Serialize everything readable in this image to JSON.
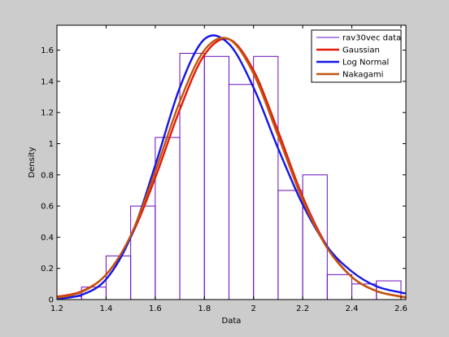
{
  "chart_data": {
    "type": "bar",
    "title": "",
    "xlabel": "Data",
    "ylabel": "Density",
    "xlim": [
      1.2,
      2.62
    ],
    "ylim": [
      0,
      1.76
    ],
    "xticks": [
      "1.2",
      "1.4",
      "1.6",
      "1.8",
      "2",
      "2.2",
      "2.4",
      "2.6"
    ],
    "yticks": [
      "0",
      "0.2",
      "0.4",
      "0.6",
      "0.8",
      "1",
      "1.2",
      "1.4",
      "1.6"
    ],
    "grid": false,
    "legend_position": "top-right",
    "histogram": {
      "name": "rav30vec data",
      "color": "#6a0dbf",
      "bin_edges": [
        1.2,
        1.3,
        1.4,
        1.5,
        1.6,
        1.7,
        1.8,
        1.9,
        2.0,
        2.1,
        2.2,
        2.3,
        2.4,
        2.5,
        2.6
      ],
      "values": [
        0.02,
        0.08,
        0.28,
        0.6,
        1.04,
        1.58,
        1.56,
        1.38,
        1.56,
        0.7,
        0.8,
        0.16,
        0.1,
        0.12
      ]
    },
    "series": [
      {
        "name": "Gaussian",
        "color": "#e41a0a",
        "x": [
          1.2,
          1.3,
          1.4,
          1.5,
          1.6,
          1.7,
          1.8,
          1.9,
          2.0,
          2.1,
          2.2,
          2.3,
          2.4,
          2.5,
          2.6,
          2.62
        ],
        "y": [
          0.018,
          0.052,
          0.16,
          0.4,
          0.78,
          1.22,
          1.57,
          1.67,
          1.47,
          1.08,
          0.66,
          0.34,
          0.145,
          0.055,
          0.02,
          0.015
        ]
      },
      {
        "name": "Log Normal",
        "color": "#1515e6",
        "x": [
          1.2,
          1.3,
          1.4,
          1.5,
          1.6,
          1.7,
          1.8,
          1.9,
          2.0,
          2.1,
          2.2,
          2.3,
          2.4,
          2.5,
          2.6,
          2.62
        ],
        "y": [
          0.005,
          0.03,
          0.13,
          0.4,
          0.86,
          1.36,
          1.67,
          1.64,
          1.36,
          0.97,
          0.61,
          0.34,
          0.18,
          0.085,
          0.045,
          0.04
        ]
      },
      {
        "name": "Nakagami",
        "color": "#c0560f",
        "x": [
          1.2,
          1.3,
          1.4,
          1.5,
          1.6,
          1.7,
          1.8,
          1.9,
          2.0,
          2.1,
          2.2,
          2.3,
          2.4,
          2.5,
          2.6,
          2.62
        ],
        "y": [
          0.012,
          0.048,
          0.16,
          0.41,
          0.82,
          1.27,
          1.6,
          1.67,
          1.45,
          1.05,
          0.64,
          0.33,
          0.145,
          0.055,
          0.018,
          0.014
        ]
      }
    ]
  }
}
